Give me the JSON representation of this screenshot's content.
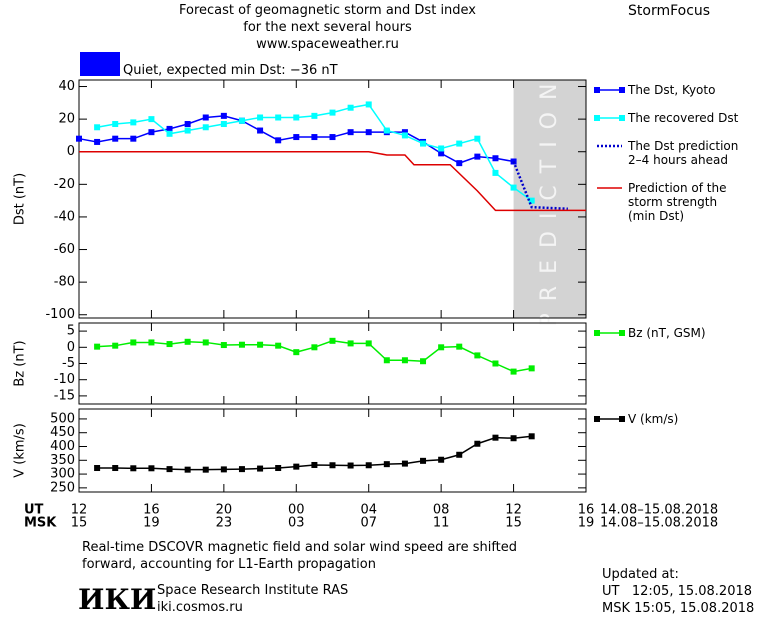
{
  "header": {
    "title": [
      "Forecast of geomagnetic storm and Dst index",
      "for the next several hours",
      "www.spaceweather.ru"
    ],
    "brand": "StormFocus",
    "status": "Quiet, expected min Dst: −36 nT",
    "status_color": "#0000ff"
  },
  "chart_data": [
    {
      "type": "line",
      "ylabel": "Dst (nT)",
      "xlim": [
        0,
        28
      ],
      "ylim": [
        -102,
        44
      ],
      "yticks": [
        40,
        20,
        0,
        -20,
        -40,
        -60,
        -80,
        -100
      ],
      "prediction_span": [
        24,
        28
      ],
      "prediction_label": "PREDICTION",
      "series": [
        {
          "name": "The Dst, Kyoto",
          "color": "#0000ff",
          "marker": true,
          "dash": false,
          "x": [
            0,
            1,
            2,
            3,
            4,
            5,
            6,
            7,
            8,
            9,
            10,
            11,
            12,
            13,
            14,
            15,
            16,
            17,
            18,
            19,
            20,
            21,
            22,
            23,
            24
          ],
          "values": [
            8,
            6,
            8,
            8,
            12,
            14,
            17,
            21,
            22,
            19,
            13,
            7,
            9,
            9,
            9,
            12,
            12,
            12,
            12,
            6,
            -1,
            -7,
            -3,
            -4,
            -6
          ]
        },
        {
          "name": "The recovered Dst",
          "color": "#00ffff",
          "marker": true,
          "dash": false,
          "x": [
            1,
            2,
            3,
            4,
            5,
            6,
            7,
            8,
            9,
            10,
            11,
            12,
            13,
            14,
            15,
            16,
            17,
            18,
            19,
            20,
            21,
            22,
            23,
            24,
            25
          ],
          "values": [
            15,
            17,
            18,
            20,
            11,
            13,
            15,
            17,
            19,
            21,
            21,
            21,
            22,
            24,
            27,
            29,
            13,
            10,
            5,
            2,
            5,
            8,
            -13,
            -22,
            -30
          ]
        },
        {
          "name": "The Dst prediction\n2–4 hours ahead",
          "color": "#0000cc",
          "marker": false,
          "dash": true,
          "x": [
            24,
            25,
            27
          ],
          "values": [
            -6,
            -34,
            -35
          ]
        },
        {
          "name": "Prediction of the\nstorm strength\n(min Dst)",
          "color": "#dd0000",
          "marker": false,
          "dash": false,
          "x": [
            0,
            16,
            16.5,
            17,
            18,
            18.5,
            20.5,
            22,
            23,
            28
          ],
          "values": [
            0,
            0,
            -1,
            -2,
            -2,
            -8,
            -8,
            -24,
            -36,
            -36
          ]
        }
      ]
    },
    {
      "type": "line",
      "ylabel": "Bz (nT)",
      "xlim": [
        0,
        28
      ],
      "ylim": [
        -17.5,
        7.5
      ],
      "yticks": [
        5,
        0,
        -5,
        -10,
        -15
      ],
      "series": [
        {
          "name": "Bz (nT, GSM)",
          "color": "#00ee00",
          "marker": true,
          "dash": false,
          "x": [
            1,
            2,
            3,
            4,
            5,
            6,
            7,
            8,
            9,
            10,
            11,
            12,
            13,
            14,
            15,
            16,
            17,
            18,
            19,
            20,
            21,
            22,
            23,
            24,
            25
          ],
          "values": [
            0.2,
            0.5,
            1.5,
            1.5,
            1,
            1.7,
            1.5,
            0.7,
            0.8,
            0.8,
            0.5,
            -1.5,
            0,
            2,
            1.2,
            1.2,
            -4,
            -4,
            -4.3,
            0,
            0.2,
            -2.5,
            -5,
            -7.5,
            -6.5
          ]
        }
      ]
    },
    {
      "type": "line",
      "ylabel": "V (km/s)",
      "xlim": [
        0,
        28
      ],
      "ylim": [
        235,
        536
      ],
      "yticks": [
        500,
        450,
        400,
        350,
        300,
        250
      ],
      "x_label": "UT",
      "x2_label": "MSK",
      "date_range": "14.08–15.08.2018",
      "xticks": [
        {
          "value": 0,
          "label": "12"
        },
        {
          "value": 4,
          "label": "16"
        },
        {
          "value": 8,
          "label": "20"
        },
        {
          "value": 12,
          "label": "00"
        },
        {
          "value": 16,
          "label": "04"
        },
        {
          "value": 20,
          "label": "08"
        },
        {
          "value": 24,
          "label": "12"
        },
        {
          "value": 28,
          "label": "16"
        }
      ],
      "xticks_msk": [
        {
          "value": 0,
          "label": "15"
        },
        {
          "value": 4,
          "label": "19"
        },
        {
          "value": 8,
          "label": "23"
        },
        {
          "value": 12,
          "label": "03"
        },
        {
          "value": 16,
          "label": "07"
        },
        {
          "value": 20,
          "label": "11"
        },
        {
          "value": 24,
          "label": "15"
        },
        {
          "value": 28,
          "label": "19"
        }
      ],
      "series": [
        {
          "name": "V (km/s)",
          "color": "#000000",
          "marker": true,
          "dash": false,
          "x": [
            1,
            2,
            3,
            4,
            5,
            6,
            7,
            8,
            9,
            10,
            11,
            12,
            13,
            14,
            15,
            16,
            17,
            18,
            19,
            20,
            21,
            22,
            23,
            24,
            25
          ],
          "values": [
            322,
            322,
            321,
            321,
            318,
            316,
            316,
            317,
            318,
            320,
            322,
            327,
            333,
            332,
            331,
            332,
            336,
            338,
            348,
            352,
            370,
            410,
            432,
            430,
            437
          ]
        }
      ]
    }
  ],
  "footer": {
    "note": [
      "Real-time DSCOVR magnetic field and solar wind speed are shifted",
      "forward, accounting for L1-Earth propagation"
    ],
    "logo": "ИКИ",
    "institute": "Space Research Institute RAS",
    "site": "iki.cosmos.ru",
    "updated_title": "Updated at:",
    "updated_ut": "UT   12:05, 15.08.2018",
    "updated_msk": "MSK 15:05, 15.08.2018"
  }
}
